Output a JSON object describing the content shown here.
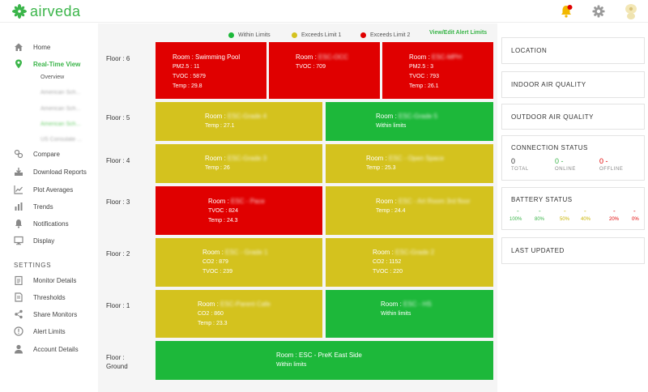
{
  "app": {
    "name": "airveda"
  },
  "colors": {
    "brand": "#3bb54a",
    "within": "#1db83a",
    "exceeds1": "#d4c21e",
    "exceeds2": "#e00000"
  },
  "header": {
    "icons": [
      "bell-icon",
      "gear-icon",
      "avatar-icon"
    ]
  },
  "sidebar": {
    "home": "Home",
    "realtime": "Real-Time View",
    "overview": "Overview",
    "sub_blurred": [
      "American Sch...",
      "American Sch...",
      "American Sch...",
      "US Consulate ..."
    ],
    "compare": "Compare",
    "download": "Download Reports",
    "plot": "Plot Averages",
    "trends": "Trends",
    "notifications": "Notifications",
    "display": "Display",
    "settings_label": "SETTINGS",
    "monitor_details": "Monitor Details",
    "thresholds": "Thresholds",
    "share": "Share Monitors",
    "alert_limits": "Alert Limits",
    "account": "Account Details"
  },
  "legend": {
    "within": "Within Limits",
    "exceeds1": "Exceeds Limit 1",
    "exceeds2": "Exceeds Limit 2",
    "link": "View/Edit Alert Limits"
  },
  "floors": {
    "f6": "Floor : 6",
    "f5": "Floor : 5",
    "f4": "Floor : 4",
    "f3": "Floor : 3",
    "f2": "Floor : 2",
    "f1": "Floor : 1",
    "fg1": "Floor :",
    "fg2": "Ground"
  },
  "rooms": {
    "r6a": {
      "prefix": "Room : ",
      "name": "Swimming Pool",
      "l1": "PM2.5 : 11",
      "l2": "TVOC : 5879",
      "l3": "Temp : 29.8"
    },
    "r6b": {
      "prefix": "Room : ",
      "name": "ESC-OCC",
      "l1": "TVOC : 709"
    },
    "r6c": {
      "prefix": "Room : ",
      "name": "ESC-MPH",
      "l1": "PM2.5 : 3",
      "l2": "TVOC : 793",
      "l3": "Temp : 26.1"
    },
    "r5a": {
      "prefix": "Room : ",
      "name": "ESC-Grade 4",
      "l1": "Temp : 27.1"
    },
    "r5b": {
      "prefix": "Room : ",
      "name": "ESC-Grade 5",
      "l1": "Within limits"
    },
    "r4a": {
      "prefix": "Room : ",
      "name": "ESC-Grade 3",
      "l1": "Temp : 26"
    },
    "r4b": {
      "prefix": "Room : ",
      "name": "ESC - Open Space",
      "l1": "Temp : 25.3"
    },
    "r3a": {
      "prefix": "Room : ",
      "name": "ESC - Pace",
      "l1": "TVOC : 824",
      "l2": "Temp : 24.3"
    },
    "r3b": {
      "prefix": "Room : ",
      "name": "ESC - Art Room 3rd floor",
      "l1": "Temp : 24.4"
    },
    "r2a": {
      "prefix": "Room : ",
      "name": "ESC - Grade 1",
      "l1": "CO2 : 879",
      "l2": "TVOC : 239"
    },
    "r2b": {
      "prefix": "Room : ",
      "name": "ESC-Grade 2",
      "l1": "CO2 : 1152",
      "l2": "TVOC : 220"
    },
    "r1a": {
      "prefix": "Room : ",
      "name": "ESC-Parent Cafe",
      "l1": "CO2 : 860",
      "l2": "Temp : 23.3"
    },
    "r1b": {
      "prefix": "Room : ",
      "name": "ESC - HS",
      "l1": "Within limits"
    },
    "rg": {
      "prefix": "Room : ",
      "name": "ESC - PreK East Side",
      "l1": "Within limits"
    }
  },
  "panels": {
    "location": "LOCATION",
    "indoor": "INDOOR AIR QUALITY",
    "outdoor": "OUTDOOR AIR QUALITY",
    "connection": {
      "title": "CONNECTION STATUS",
      "total_val": "0",
      "total_lbl": "TOTAL",
      "online_val": "0 -",
      "online_lbl": "ONLINE",
      "offline_val": "0 -",
      "offline_lbl": "OFFLINE"
    },
    "battery": {
      "title": "BATTERY STATUS",
      "dashes": [
        "-",
        "-",
        "-",
        "-",
        "-",
        "-"
      ],
      "pcts": [
        "100%",
        "80%",
        "50%",
        "40%",
        "20%",
        "0%"
      ],
      "pct_colors": [
        "#3bb54a",
        "#3bb54a",
        "#c9b400",
        "#c9b400",
        "#e00000",
        "#e00000"
      ]
    },
    "last_updated": "LAST UPDATED"
  }
}
